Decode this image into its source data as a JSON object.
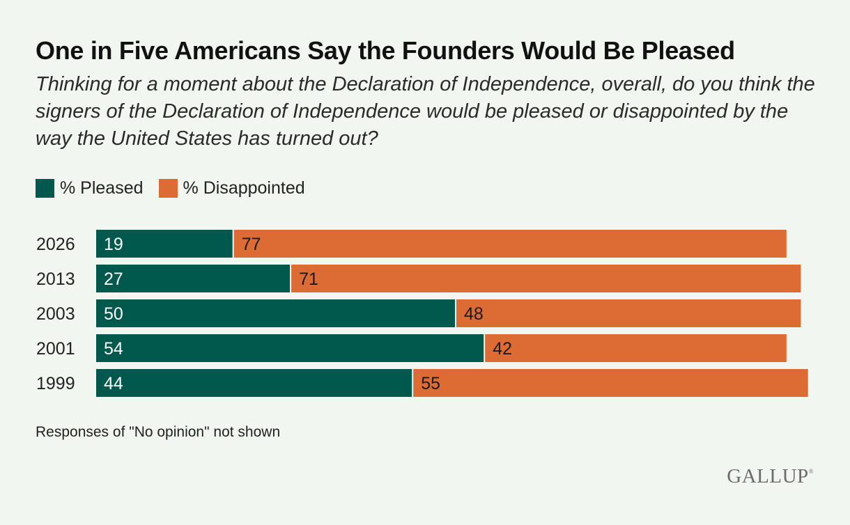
{
  "title": "One in Five Americans Say the Founders Would Be Pleased",
  "subtitle": "Thinking for a moment about the Declaration of Independence, overall, do you think the signers of the Declaration of Independence would be pleased or disappointed by the way the United States has turned out?",
  "note": "Responses of \"No opinion\" not shown",
  "logo": "GALLUP",
  "colors": {
    "pleased": "#00594c",
    "disappointed": "#dd6b34",
    "background": "#f1f6f1"
  },
  "chart_data": {
    "type": "bar",
    "orientation": "horizontal",
    "stacked": true,
    "categories": [
      "2026",
      "2013",
      "2003",
      "2001",
      "1999"
    ],
    "series": [
      {
        "name": "% Pleased",
        "values": [
          19,
          27,
          50,
          54,
          44
        ]
      },
      {
        "name": "% Disappointed",
        "values": [
          77,
          71,
          48,
          42,
          55
        ]
      }
    ],
    "xlim": [
      0,
      100
    ],
    "grid": false,
    "legend_position": "top-left",
    "data_labels": true
  }
}
